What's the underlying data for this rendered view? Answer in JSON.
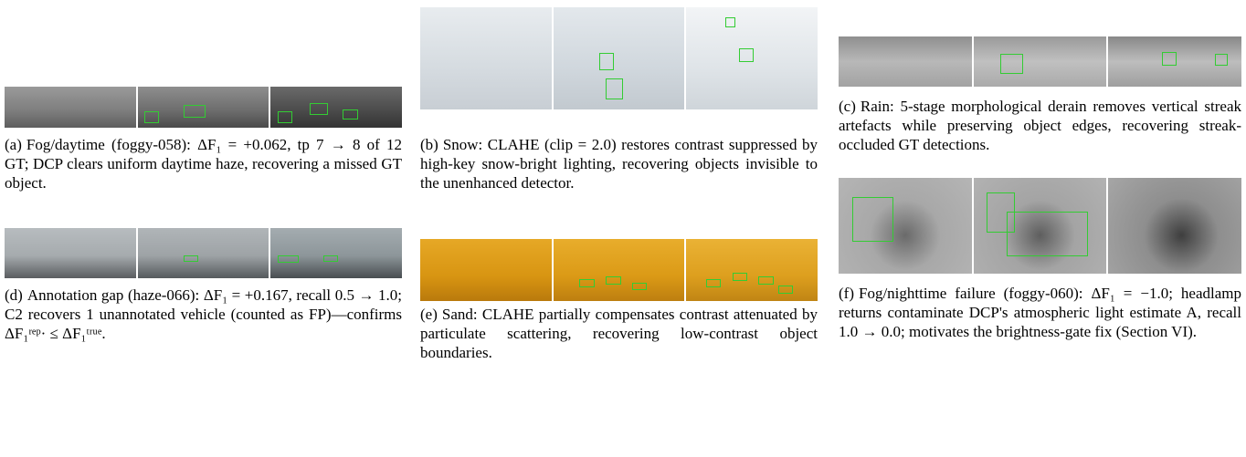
{
  "subfigures": [
    {
      "label": "(a)",
      "caption": "Fog/daytime (foggy-058): ΔF₁ = +0.062, tp 7 → 8 of 12 GT; DCP clears uniform daytime haze, recovering a missed GT object."
    },
    {
      "label": "(b)",
      "caption": "Snow: CLAHE (clip = 2.0) restores contrast suppressed by high-key snow-bright lighting, recovering objects invisible to the unenhanced detector."
    },
    {
      "label": "(c)",
      "caption": "Rain: 5-stage morphological derain removes vertical streak artefacts while preserving object edges, recovering streak-occluded GT detections."
    },
    {
      "label": "(d)",
      "caption": "Annotation gap (haze-066): ΔF₁ = +0.167, recall 0.5 → 1.0; C2 recovers 1 unannotated vehicle (counted as FP)—confirms ΔF₁ʳᵉᵖ· ≤ ΔF₁ᵗʳᵘᵉ."
    },
    {
      "label": "(e)",
      "caption": "Sand: CLAHE partially compensates contrast attenuated by particulate scattering, recovering low-contrast object boundaries."
    },
    {
      "label": "(f)",
      "caption": "Fog/nighttime failure (foggy-060): ΔF₁ = −1.0; headlamp returns contaminate DCP's atmospheric light estimate A, recall 1.0 → 0.0; motivates the brightness-gate fix (Section VI)."
    }
  ]
}
